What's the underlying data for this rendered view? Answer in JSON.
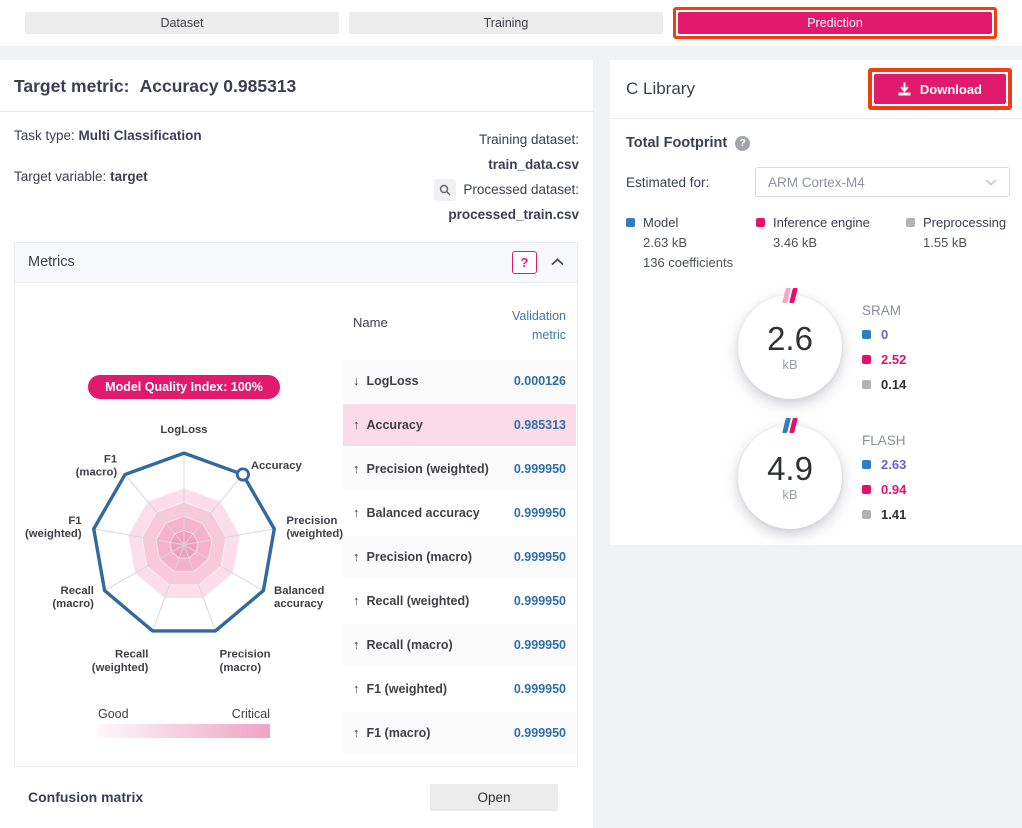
{
  "colors": {
    "accent_pink": "#e11a6d",
    "annotation_red": "#f23d14",
    "value_blue": "#2d6fa8",
    "header_blue": "#4279ab",
    "radar_outline_blue": "#33699f",
    "legend_blue": "#2e7ec4",
    "legend_pink": "#e6116e",
    "legend_gray": "#b3b3b3",
    "purple_value": "#6b5fcf"
  },
  "tabs": [
    {
      "label": "Dataset",
      "active": false
    },
    {
      "label": "Training",
      "active": false
    },
    {
      "label": "Prediction",
      "active": true,
      "annotated": true
    }
  ],
  "left_panel": {
    "title_label": "Target metric:",
    "title_value": "Accuracy 0.985313",
    "task_type_label": "Task type:",
    "task_type_value": "Multi Classification",
    "target_variable_label": "Target variable:",
    "target_variable_value": "target",
    "training_dataset_label": "Training dataset:",
    "training_dataset_value": "train_data.csv",
    "processed_dataset_label": "Processed dataset:",
    "processed_dataset_value": "processed_train.csv",
    "metrics": {
      "header": "Metrics",
      "help_button": "?",
      "badge": "Model Quality Index: 100%",
      "table": {
        "col_name": "Name",
        "col_value_line1": "Validation",
        "col_value_line2": "metric",
        "rows": [
          {
            "arrow": "down",
            "name": "LogLoss",
            "value": "0.000126",
            "bg": "gray"
          },
          {
            "arrow": "up",
            "name": "Accuracy",
            "value": "0.985313",
            "bg": "selected"
          },
          {
            "arrow": "up",
            "name": "Precision (weighted)",
            "value": "0.999950",
            "bg": "gray"
          },
          {
            "arrow": "up",
            "name": "Balanced accuracy",
            "value": "0.999950",
            "bg": "white"
          },
          {
            "arrow": "up",
            "name": "Precision (macro)",
            "value": "0.999950",
            "bg": "gray"
          },
          {
            "arrow": "up",
            "name": "Recall (weighted)",
            "value": "0.999950",
            "bg": "white"
          },
          {
            "arrow": "up",
            "name": "Recall (macro)",
            "value": "0.999950",
            "bg": "gray"
          },
          {
            "arrow": "up",
            "name": "F1 (weighted)",
            "value": "0.999950",
            "bg": "white"
          },
          {
            "arrow": "up",
            "name": "F1 (macro)",
            "value": "0.999950",
            "bg": "gray"
          }
        ]
      },
      "gradient_legend": {
        "left": "Good",
        "right": "Critical",
        "from": "#fdf8fa",
        "to": "#eea3c3"
      }
    },
    "confusion": {
      "label": "Confusion matrix",
      "button": "Open"
    }
  },
  "right_panel": {
    "title": "C Library",
    "download_button": "Download",
    "total_footprint_label": "Total Footprint",
    "estimated_for_label": "Estimated for:",
    "estimated_for_value": "ARM Cortex-M4",
    "footprint_legend": [
      {
        "label": "Model",
        "size": "2.63 kB",
        "extra": "136 coefficients",
        "color": "#2e7ec4"
      },
      {
        "label": "Inference engine",
        "size": "3.46 kB",
        "color": "#e6116e"
      },
      {
        "label": "Preprocessing",
        "size": "1.55 kB",
        "color": "#b3b3b3"
      }
    ],
    "gauges": [
      {
        "name": "SRAM",
        "value": "2.6",
        "unit": "kB",
        "marker_colors": [
          "#f2a9c6",
          "#e6116e"
        ],
        "items": [
          {
            "color": "#2e7ec4",
            "value": "0",
            "text_color": "#6b5fcf"
          },
          {
            "color": "#e6116e",
            "value": "2.52",
            "text_color": "#e6116e"
          },
          {
            "color": "#b3b3b3",
            "value": "0.14",
            "text_color": "#2f2f33"
          }
        ]
      },
      {
        "name": "FLASH",
        "value": "4.9",
        "unit": "kB",
        "marker_colors": [
          "#2e7ec4",
          "#e6116e"
        ],
        "items": [
          {
            "color": "#2e7ec4",
            "value": "2.63",
            "text_color": "#6b5fcf"
          },
          {
            "color": "#e6116e",
            "value": "0.94",
            "text_color": "#e6116e"
          },
          {
            "color": "#b3b3b3",
            "value": "1.41",
            "text_color": "#2f2f33"
          }
        ]
      }
    ]
  },
  "chart_data": {
    "type": "radar",
    "title": "Model Quality Index: 100%",
    "axes": [
      "LogLoss",
      "Accuracy",
      "Precision (weighted)",
      "Balanced accuracy",
      "Precision (macro)",
      "Recall (weighted)",
      "Recall (macro)",
      "F1 (weighted)",
      "F1 (macro)"
    ],
    "metric_values": [
      0.000126,
      0.985313,
      0.99995,
      0.99995,
      0.99995,
      0.99995,
      0.99995,
      0.99995,
      0.99995
    ],
    "values_normalized": [
      1,
      1,
      1,
      1,
      1,
      1,
      1,
      1,
      1
    ],
    "marker_axis": "Accuracy",
    "rings": 4,
    "ring_colors": [
      "#f09fbe",
      "#f4b3cb",
      "#f8c9d9",
      "#fbdee9"
    ],
    "outline_color": "#33699f",
    "legend": {
      "good": "Good",
      "critical": "Critical"
    }
  }
}
